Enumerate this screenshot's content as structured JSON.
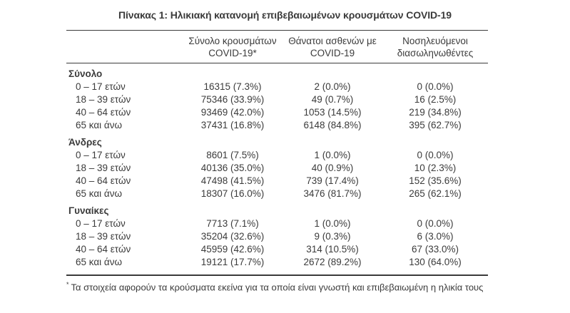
{
  "page": {
    "title": "Πίνακας 1: Ηλικιακή κατανομή επιβεβαιωμένων κρουσμάτων COVID-19"
  },
  "colors": {
    "text": "#3b3b3b",
    "rule": "#3b3b3b",
    "background": "#ffffff"
  },
  "table": {
    "header": {
      "col_cases_line1": "Σύνολο κρουσμάτων",
      "col_cases_line2": "COVID-19*",
      "col_deaths_line1": "Θάνατοι ασθενών με",
      "col_deaths_line2": "COVID-19",
      "col_intubated_line1": "Νοσηλευόμενοι",
      "col_intubated_line2": "διασωληνωθέντες"
    },
    "sections": [
      {
        "label": "Σύνολο",
        "rows": [
          {
            "age": "0 – 17 ετών",
            "cases": "16315 (7.3%)",
            "deaths": "2 (0.0%)",
            "intubated": "0 (0.0%)"
          },
          {
            "age": "18 – 39 ετών",
            "cases": "75346 (33.9%)",
            "deaths": "49 (0.7%)",
            "intubated": "16 (2.5%)"
          },
          {
            "age": "40 – 64 ετών",
            "cases": "93469 (42.0%)",
            "deaths": "1053 (14.5%)",
            "intubated": "219 (34.8%)"
          },
          {
            "age": "65 και άνω",
            "cases": "37431 (16.8%)",
            "deaths": "6148 (84.8%)",
            "intubated": "395 (62.7%)"
          }
        ]
      },
      {
        "label": "Άνδρες",
        "rows": [
          {
            "age": "0 – 17 ετών",
            "cases": "8601 (7.5%)",
            "deaths": "1 (0.0%)",
            "intubated": "0 (0.0%)"
          },
          {
            "age": "18 – 39 ετών",
            "cases": "40136 (35.0%)",
            "deaths": "40 (0.9%)",
            "intubated": "10 (2.3%)"
          },
          {
            "age": "40 – 64 ετών",
            "cases": "47498 (41.5%)",
            "deaths": "739 (17.4%)",
            "intubated": "152 (35.6%)"
          },
          {
            "age": "65 και άνω",
            "cases": "18307 (16.0%)",
            "deaths": "3476 (81.7%)",
            "intubated": "265 (62.1%)"
          }
        ]
      },
      {
        "label": "Γυναίκες",
        "rows": [
          {
            "age": "0 – 17 ετών",
            "cases": "7713 (7.1%)",
            "deaths": "1 (0.0%)",
            "intubated": "0 (0.0%)"
          },
          {
            "age": "18 – 39 ετών",
            "cases": "35204 (32.6%)",
            "deaths": "9 (0.3%)",
            "intubated": "6 (3.0%)"
          },
          {
            "age": "40 – 64 ετών",
            "cases": "45959 (42.6%)",
            "deaths": "314 (10.5%)",
            "intubated": "67 (33.0%)"
          },
          {
            "age": "65 και άνω",
            "cases": "19121 (17.7%)",
            "deaths": "2672 (89.2%)",
            "intubated": "130 (64.0%)"
          }
        ]
      }
    ]
  },
  "footnote": {
    "marker": "*",
    "text": "Τα στοιχεία αφορούν τα κρούσματα εκείνα για τα οποία είναι γνωστή και επιβεβαιωμένη η ηλικία τους"
  }
}
